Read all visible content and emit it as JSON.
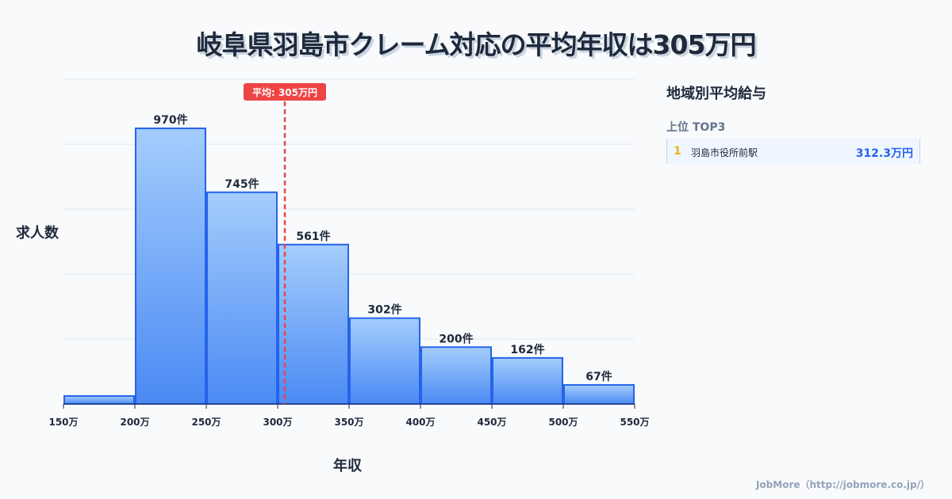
{
  "chart_data": {
    "type": "bar",
    "title": "岐阜県羽島市クレーム対応の平均年収は305万円",
    "xlabel": "年収",
    "ylabel": "求人数",
    "bins": [
      [
        150,
        200
      ],
      [
        200,
        250
      ],
      [
        250,
        300
      ],
      [
        300,
        350
      ],
      [
        350,
        400
      ],
      [
        400,
        450
      ],
      [
        450,
        500
      ],
      [
        500,
        550
      ]
    ],
    "values": [
      28,
      970,
      745,
      561,
      302,
      200,
      162,
      67
    ],
    "data_labels": [
      "",
      "970件",
      "745件",
      "561件",
      "302件",
      "200件",
      "162件",
      "67件"
    ],
    "x_ticks": [
      150,
      200,
      250,
      300,
      350,
      400,
      450,
      500,
      550
    ],
    "x_tick_labels": [
      "150万",
      "200万",
      "250万",
      "300万",
      "350万",
      "400万",
      "450万",
      "500万",
      "550万"
    ],
    "xlim": [
      150,
      550
    ],
    "ylim": [
      0,
      1143
    ],
    "grid": true,
    "average": {
      "value": 305,
      "label": "平均: 305万円",
      "color": "#ef4444"
    },
    "bar_color": "#3b82f6"
  },
  "panel": {
    "title": "地域別平均給与",
    "subtitle": "上位 TOP3",
    "ranking": [
      {
        "rank": "1",
        "name": "羽島市役所前駅",
        "value": "312.3万円"
      }
    ]
  },
  "footer": "JobMore（http://jobmore.co.jp/）"
}
